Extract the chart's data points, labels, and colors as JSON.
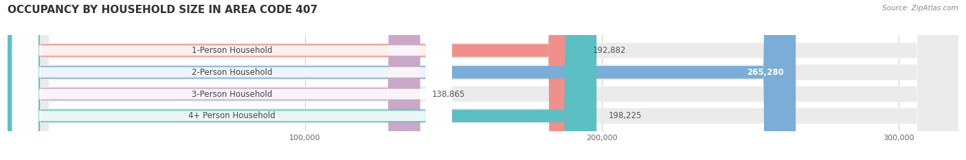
{
  "title": "OCCUPANCY BY HOUSEHOLD SIZE IN AREA CODE 407",
  "source_text": "Source: ZipAtlas.com",
  "categories": [
    "1-Person Household",
    "2-Person Household",
    "3-Person Household",
    "4+ Person Household"
  ],
  "values": [
    192882,
    265280,
    138865,
    198225
  ],
  "bar_colors": [
    "#f0908a",
    "#7badd6",
    "#c9a8c8",
    "#5bbfc4"
  ],
  "value_inside": [
    false,
    true,
    false,
    false
  ],
  "xlim": [
    0,
    320000
  ],
  "xticks": [
    100000,
    200000,
    300000
  ],
  "xtick_labels": [
    "100,000",
    "200,000",
    "300,000"
  ],
  "background_color": "#ffffff",
  "title_fontsize": 11,
  "label_fontsize": 8.5,
  "value_fontsize": 8.5,
  "bar_height": 0.58
}
